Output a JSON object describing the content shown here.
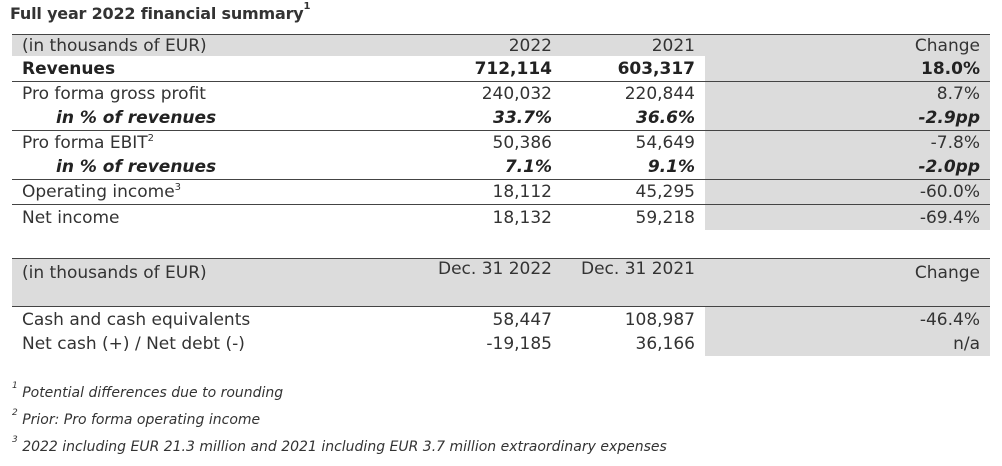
{
  "title": "Full year 2022 financial summary",
  "title_sup": "1",
  "table1": {
    "header": [
      "(in thousands of EUR)",
      "2022",
      "2021",
      "Change"
    ],
    "rows": [
      {
        "label": "Revenues",
        "sup": "",
        "v2022": "712,114",
        "v2021": "603,317",
        "change": "18.0%"
      },
      {
        "label": "Pro forma gross profit",
        "sup": "",
        "v2022": "240,032",
        "v2021": "220,844",
        "change": "8.7%"
      },
      {
        "label": "in % of revenues",
        "sup": "",
        "v2022": "33.7%",
        "v2021": "36.6%",
        "change": "-2.9pp"
      },
      {
        "label": "Pro forma EBIT",
        "sup": "2",
        "v2022": "50,386",
        "v2021": "54,649",
        "change": "-7.8%"
      },
      {
        "label": "in % of revenues",
        "sup": "",
        "v2022": "7.1%",
        "v2021": "9.1%",
        "change": "-2.0pp"
      },
      {
        "label": "Operating income",
        "sup": "3",
        "v2022": "18,112",
        "v2021": "45,295",
        "change": "-60.0%"
      },
      {
        "label": "Net income",
        "sup": "",
        "v2022": "18,132",
        "v2021": "59,218",
        "change": "-69.4%"
      }
    ]
  },
  "table2": {
    "header": [
      "(in thousands of EUR)",
      "Dec. 31 2022",
      "Dec. 31 2021",
      "Change"
    ],
    "rows": [
      {
        "label": "Cash and cash equivalents",
        "v2022": "58,447",
        "v2021": "108,987",
        "change": "-46.4%"
      },
      {
        "label": "Net cash (+) / Net debt (-)",
        "v2022": "-19,185",
        "v2021": "36,166",
        "change": "n/a"
      }
    ]
  },
  "footnotes": [
    {
      "sup": "1",
      "text": "Potential differences due to rounding"
    },
    {
      "sup": "2",
      "text": "Prior: Pro forma operating income"
    },
    {
      "sup": "3",
      "text": "2022 including EUR 21.3 million and 2021 including EUR 3.7 million extraordinary expenses"
    }
  ]
}
